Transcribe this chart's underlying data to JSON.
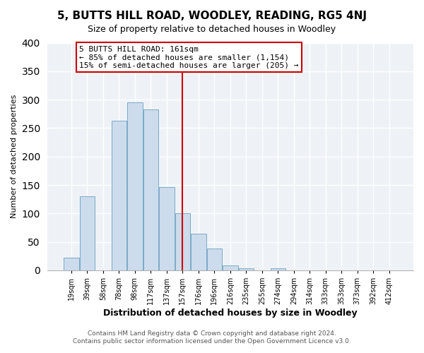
{
  "title": "5, BUTTS HILL ROAD, WOODLEY, READING, RG5 4NJ",
  "subtitle": "Size of property relative to detached houses in Woodley",
  "xlabel": "Distribution of detached houses by size in Woodley",
  "ylabel": "Number of detached properties",
  "bar_labels": [
    "19sqm",
    "39sqm",
    "58sqm",
    "78sqm",
    "98sqm",
    "117sqm",
    "137sqm",
    "157sqm",
    "176sqm",
    "196sqm",
    "216sqm",
    "235sqm",
    "255sqm",
    "274sqm",
    "294sqm",
    "314sqm",
    "333sqm",
    "353sqm",
    "373sqm",
    "392sqm",
    "412sqm"
  ],
  "bar_heights": [
    22,
    130,
    0,
    263,
    295,
    283,
    146,
    100,
    65,
    38,
    9,
    4,
    0,
    3,
    0,
    0,
    0,
    0,
    0,
    0,
    0
  ],
  "bar_color": "#ccdcec",
  "bar_edge_color": "#7aaac8",
  "vline_x_index": 7,
  "vline_color": "#cc0000",
  "ylim": [
    0,
    400
  ],
  "yticks": [
    0,
    50,
    100,
    150,
    200,
    250,
    300,
    350,
    400
  ],
  "annotation_text": "5 BUTTS HILL ROAD: 161sqm\n← 85% of detached houses are smaller (1,154)\n15% of semi-detached houses are larger (205) →",
  "annotation_box_color": "#ffffff",
  "annotation_box_edge": "#cc0000",
  "footer_line1": "Contains HM Land Registry data © Crown copyright and database right 2024.",
  "footer_line2": "Contains public sector information licensed under the Open Government Licence v3.0.",
  "background_color": "#ffffff",
  "plot_background": "#eef2f7",
  "grid_color": "#ffffff",
  "title_fontsize": 11,
  "subtitle_fontsize": 9,
  "ylabel_fontsize": 8,
  "xlabel_fontsize": 9
}
